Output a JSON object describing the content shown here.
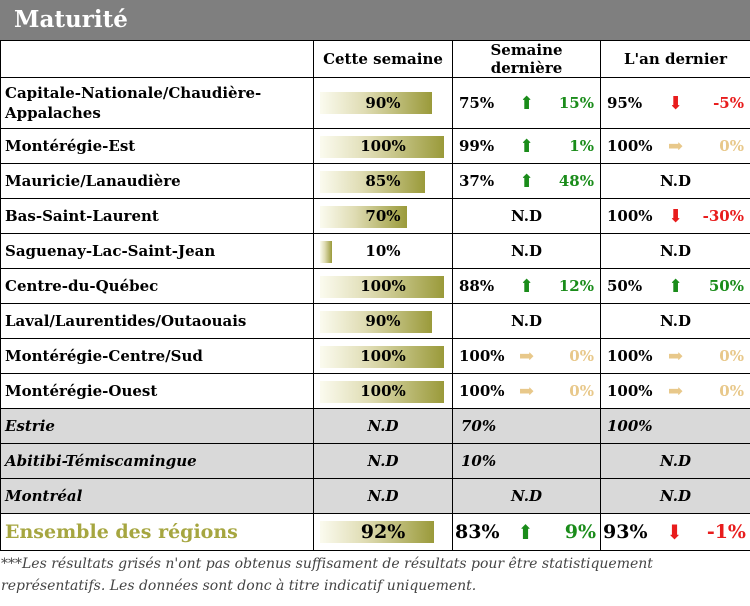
{
  "title": "Maturité",
  "headers": {
    "region": "",
    "this_week": "Cette semaine",
    "last_week": "Semaine dernière",
    "last_year": "L'an dernier"
  },
  "nd": "N.D",
  "rows": [
    {
      "region": "Capitale-Nationale/Chaudière-Appalaches",
      "value": "90%",
      "pct": 90,
      "lw": {
        "val": "75%",
        "dir": "up",
        "chg": "15%"
      },
      "ly": {
        "val": "95%",
        "dir": "down",
        "chg": "-5%"
      }
    },
    {
      "region": "Montérégie-Est",
      "value": "100%",
      "pct": 100,
      "lw": {
        "val": "99%",
        "dir": "up",
        "chg": "1%"
      },
      "ly": {
        "val": "100%",
        "dir": "equal",
        "chg": "0%"
      }
    },
    {
      "region": "Mauricie/Lanaudière",
      "value": "85%",
      "pct": 85,
      "lw": {
        "val": "37%",
        "dir": "up",
        "chg": "48%"
      },
      "ly": {
        "nd": "N.D"
      }
    },
    {
      "region": "Bas-Saint-Laurent",
      "value": "70%",
      "pct": 70,
      "lw": {
        "nd": "N.D"
      },
      "ly": {
        "val": "100%",
        "dir": "down",
        "chg": "-30%"
      }
    },
    {
      "region": "Saguenay-Lac-Saint-Jean",
      "value": "10%",
      "pct": 10,
      "lw": {
        "nd": "N.D"
      },
      "ly": {
        "nd": "N.D"
      }
    },
    {
      "region": "Centre-du-Québec",
      "value": "100%",
      "pct": 100,
      "lw": {
        "val": "88%",
        "dir": "up",
        "chg": "12%"
      },
      "ly": {
        "val": "50%",
        "dir": "up",
        "chg": "50%"
      }
    },
    {
      "region": "Laval/Laurentides/Outaouais",
      "value": "90%",
      "pct": 90,
      "lw": {
        "nd": "N.D"
      },
      "ly": {
        "nd": "N.D"
      }
    },
    {
      "region": "Montérégie-Centre/Sud",
      "value": "100%",
      "pct": 100,
      "lw": {
        "val": "100%",
        "dir": "equal",
        "chg": "0%"
      },
      "ly": {
        "val": "100%",
        "dir": "equal",
        "chg": "0%"
      }
    },
    {
      "region": "Montérégie-Ouest",
      "value": "100%",
      "pct": 100,
      "lw": {
        "val": "100%",
        "dir": "equal",
        "chg": "0%"
      },
      "ly": {
        "val": "100%",
        "dir": "equal",
        "chg": "0%"
      }
    }
  ],
  "grey_rows": [
    {
      "region": "Estrie",
      "value": "N.D",
      "lw": "70%",
      "ly": "100%"
    },
    {
      "region": "Abitibi-Témiscamingue",
      "value": "N.D",
      "lw": "10%",
      "ly": "N.D"
    },
    {
      "region": "Montréal",
      "value": "N.D",
      "lw": "N.D",
      "ly": "N.D"
    }
  ],
  "total": {
    "region": "Ensemble des régions",
    "value": "92%",
    "pct": 92,
    "lw": {
      "val": "83%",
      "dir": "up",
      "chg": "9%"
    },
    "ly": {
      "val": "93%",
      "dir": "down",
      "chg": "-1%"
    }
  },
  "footnote": "***Les résultats grisés n'ont pas obtenus suffisament de résultats pour être statistiquement représentatifs. Les données sont donc à titre indicatif uniquement.",
  "colors": {
    "up": "#1a8c1a",
    "down": "#e81c1c",
    "equal": "#e8c88a",
    "header_bg": "#7f7f7f",
    "grey_row": "#d9d9d9",
    "total_label": "#a6a640"
  },
  "icons": {
    "up": "arrow-up-icon",
    "down": "arrow-down-icon",
    "equal": "arrow-right-icon"
  }
}
